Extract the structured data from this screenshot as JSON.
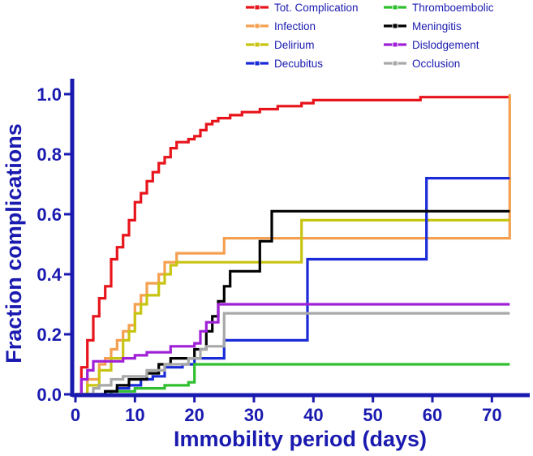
{
  "chart_data": {
    "type": "line",
    "step": true,
    "title": "",
    "xlabel": "Immobility period (days)",
    "ylabel": "Fraction complications",
    "xlim": [
      0,
      75
    ],
    "ylim": [
      0,
      1.0
    ],
    "x_ticks": [
      0,
      10,
      20,
      30,
      40,
      50,
      60,
      70
    ],
    "y_ticks": [
      0.0,
      0.2,
      0.4,
      0.6,
      0.8,
      1.0
    ],
    "y_tick_labels": [
      "0.0",
      "0.2",
      "0.4",
      "0.6",
      "0.8",
      "1.0"
    ],
    "axis_color": "#1a1ab0",
    "legend_placement": "top",
    "series": [
      {
        "name": "Tot. Complication",
        "color": "#e8141c",
        "points": [
          [
            0,
            0
          ],
          [
            1,
            0.09
          ],
          [
            2,
            0.18
          ],
          [
            3,
            0.26
          ],
          [
            4,
            0.32
          ],
          [
            5,
            0.36
          ],
          [
            6,
            0.45
          ],
          [
            7,
            0.49
          ],
          [
            8,
            0.53
          ],
          [
            9,
            0.58
          ],
          [
            10,
            0.64
          ],
          [
            11,
            0.67
          ],
          [
            12,
            0.71
          ],
          [
            13,
            0.74
          ],
          [
            14,
            0.77
          ],
          [
            15,
            0.79
          ],
          [
            16,
            0.82
          ],
          [
            17,
            0.84
          ],
          [
            19,
            0.85
          ],
          [
            20,
            0.86
          ],
          [
            21,
            0.88
          ],
          [
            22,
            0.9
          ],
          [
            23,
            0.91
          ],
          [
            24,
            0.92
          ],
          [
            26,
            0.93
          ],
          [
            28,
            0.94
          ],
          [
            31,
            0.95
          ],
          [
            34,
            0.96
          ],
          [
            38,
            0.97
          ],
          [
            40,
            0.98
          ],
          [
            58,
            0.99
          ],
          [
            73,
            0.99
          ]
        ]
      },
      {
        "name": "Infection",
        "color": "#f5a050",
        "points": [
          [
            0,
            0
          ],
          [
            2,
            0.05
          ],
          [
            4,
            0.1
          ],
          [
            5,
            0.12
          ],
          [
            6,
            0.15
          ],
          [
            7,
            0.18
          ],
          [
            8,
            0.21
          ],
          [
            9,
            0.23
          ],
          [
            10,
            0.3
          ],
          [
            11,
            0.33
          ],
          [
            12,
            0.37
          ],
          [
            14,
            0.4
          ],
          [
            15,
            0.44
          ],
          [
            17,
            0.47
          ],
          [
            25,
            0.52
          ],
          [
            73,
            0.52
          ],
          [
            73,
            1.0
          ]
        ]
      },
      {
        "name": "Delirium",
        "color": "#c8c412",
        "points": [
          [
            0,
            0
          ],
          [
            2,
            0.03
          ],
          [
            4,
            0.08
          ],
          [
            6,
            0.12
          ],
          [
            8,
            0.18
          ],
          [
            9,
            0.21
          ],
          [
            10,
            0.27
          ],
          [
            11,
            0.3
          ],
          [
            12,
            0.33
          ],
          [
            14,
            0.37
          ],
          [
            15,
            0.4
          ],
          [
            16,
            0.43
          ],
          [
            17,
            0.44
          ],
          [
            38,
            0.58
          ],
          [
            73,
            0.58
          ]
        ]
      },
      {
        "name": "Decubitus",
        "color": "#1a2ad8",
        "points": [
          [
            0,
            0
          ],
          [
            5,
            0.01
          ],
          [
            7,
            0.02
          ],
          [
            9,
            0.03
          ],
          [
            11,
            0.05
          ],
          [
            13,
            0.06
          ],
          [
            15,
            0.09
          ],
          [
            18,
            0.1
          ],
          [
            20,
            0.12
          ],
          [
            25,
            0.18
          ],
          [
            38,
            0.18
          ],
          [
            39,
            0.45
          ],
          [
            58,
            0.45
          ],
          [
            59,
            0.72
          ],
          [
            73,
            0.72
          ]
        ]
      },
      {
        "name": "Thromboembolic",
        "color": "#2fbf2f",
        "points": [
          [
            0,
            0
          ],
          [
            6,
            0.01
          ],
          [
            10,
            0.02
          ],
          [
            15,
            0.03
          ],
          [
            19,
            0.04
          ],
          [
            20,
            0.1
          ],
          [
            73,
            0.1
          ]
        ]
      },
      {
        "name": "Meningitis",
        "color": "#000000",
        "points": [
          [
            0,
            0
          ],
          [
            5,
            0.01
          ],
          [
            7,
            0.03
          ],
          [
            9,
            0.05
          ],
          [
            12,
            0.07
          ],
          [
            14,
            0.1
          ],
          [
            16,
            0.12
          ],
          [
            20,
            0.15
          ],
          [
            22,
            0.21
          ],
          [
            23,
            0.26
          ],
          [
            24,
            0.31
          ],
          [
            25,
            0.36
          ],
          [
            26,
            0.41
          ],
          [
            31,
            0.51
          ],
          [
            33,
            0.61
          ],
          [
            73,
            0.61
          ]
        ]
      },
      {
        "name": "Dislodgement",
        "color": "#a020d8",
        "points": [
          [
            0,
            0
          ],
          [
            1,
            0.05
          ],
          [
            2,
            0.08
          ],
          [
            3,
            0.11
          ],
          [
            8,
            0.12
          ],
          [
            10,
            0.13
          ],
          [
            12,
            0.14
          ],
          [
            16,
            0.16
          ],
          [
            20,
            0.17
          ],
          [
            21,
            0.21
          ],
          [
            22,
            0.24
          ],
          [
            24,
            0.3
          ],
          [
            73,
            0.3
          ]
        ]
      },
      {
        "name": "Occlusion",
        "color": "#a8a8a8",
        "points": [
          [
            0,
            0
          ],
          [
            3,
            0.02
          ],
          [
            4,
            0.03
          ],
          [
            6,
            0.05
          ],
          [
            8,
            0.06
          ],
          [
            12,
            0.08
          ],
          [
            15,
            0.1
          ],
          [
            19,
            0.12
          ],
          [
            21,
            0.15
          ],
          [
            22,
            0.16
          ],
          [
            25,
            0.27
          ],
          [
            73,
            0.27
          ]
        ]
      }
    ]
  }
}
